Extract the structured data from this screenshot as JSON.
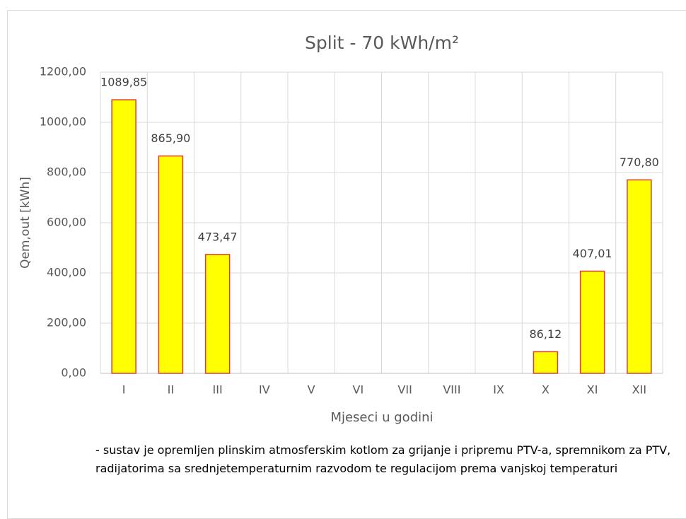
{
  "chart_data": {
    "type": "bar",
    "title": "Split - 70 kWh/m²",
    "x_label": "Mjeseci u godini",
    "y_label": "Qem,out [kWh]",
    "categories": [
      "I",
      "II",
      "III",
      "IV",
      "V",
      "VI",
      "VII",
      "VIII",
      "IX",
      "X",
      "XI",
      "XII"
    ],
    "values": [
      1089.85,
      865.9,
      473.47,
      null,
      null,
      null,
      null,
      null,
      null,
      86.12,
      407.01,
      770.8
    ],
    "value_labels": [
      "1089,85",
      "865,90",
      "473,47",
      null,
      null,
      null,
      null,
      null,
      null,
      "86,12",
      "407,01",
      "770,80"
    ],
    "color": "#ffff00",
    "edge_color": "#e03c31",
    "ylim": [
      0,
      1200
    ],
    "yticks": [
      {
        "value": 0,
        "label": "0,00"
      },
      {
        "value": 200,
        "label": "200,00"
      },
      {
        "value": 400,
        "label": "400,00"
      },
      {
        "value": 600,
        "label": "600,00"
      },
      {
        "value": 800,
        "label": "800,00"
      },
      {
        "value": 1000,
        "label": "1000,00"
      },
      {
        "value": 1200,
        "label": "1200,00"
      }
    ],
    "grid": true,
    "note": "- sustav je opremljen plinskim atmosferskim kotlom za grijanje i pripremu PTV-a, spremnikom za PTV, radijatorima sa srednjetemperaturnim razvodom te regulacijom prema vanjskoj temperaturi"
  }
}
